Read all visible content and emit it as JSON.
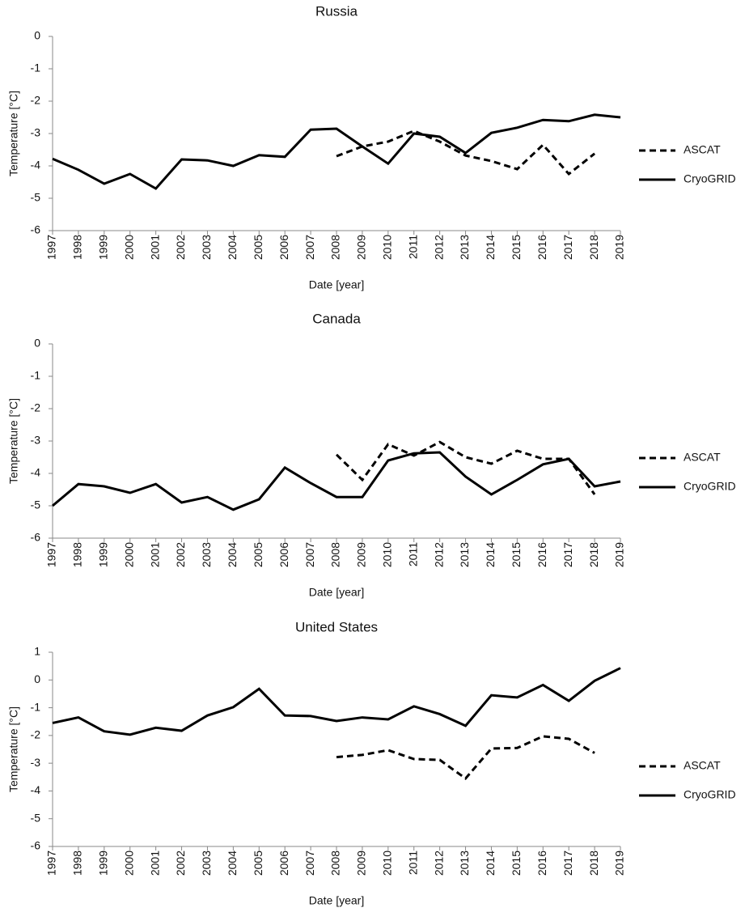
{
  "chart_data": [
    {
      "type": "line",
      "title": "Russia",
      "x_label": "Date [year]",
      "y_label": "Temperature [°C]",
      "x": [
        1997,
        1998,
        1999,
        2000,
        2001,
        2002,
        2003,
        2004,
        2005,
        2006,
        2007,
        2008,
        2009,
        2010,
        2011,
        2012,
        2013,
        2014,
        2015,
        2016,
        2017,
        2018,
        2019
      ],
      "xlim": [
        1997,
        2019
      ],
      "xticks": [
        1997,
        1998,
        1999,
        2000,
        2001,
        2002,
        2003,
        2004,
        2005,
        2006,
        2007,
        2008,
        2009,
        2010,
        2011,
        2012,
        2013,
        2014,
        2015,
        2016,
        2017,
        2018,
        2019
      ],
      "ylim": [
        -6,
        0
      ],
      "yticks": [
        -6,
        -5,
        -4,
        -3,
        -2,
        -1,
        0
      ],
      "legend": "right",
      "series": [
        {
          "name": "ASCAT",
          "color": "#000000",
          "line_style": "dashed",
          "values": [
            null,
            null,
            null,
            null,
            null,
            null,
            null,
            null,
            null,
            null,
            null,
            -3.7,
            -3.4,
            -3.25,
            -2.92,
            -3.25,
            -3.68,
            -3.85,
            -4.1,
            -3.35,
            -4.25,
            -3.62,
            null
          ]
        },
        {
          "name": "CryoGRID",
          "color": "#000000",
          "line_style": "solid",
          "values": [
            -3.78,
            -4.12,
            -4.55,
            -4.25,
            -4.7,
            -3.8,
            -3.83,
            -4.0,
            -3.67,
            -3.72,
            -2.88,
            -2.85,
            -3.4,
            -3.93,
            -3.0,
            -3.1,
            -3.6,
            -2.98,
            -2.82,
            -2.58,
            -2.62,
            -2.42,
            -2.5
          ]
        }
      ]
    },
    {
      "type": "line",
      "title": "Canada",
      "x_label": "Date [year]",
      "y_label": "Temperature [°C]",
      "x": [
        1997,
        1998,
        1999,
        2000,
        2001,
        2002,
        2003,
        2004,
        2005,
        2006,
        2007,
        2008,
        2009,
        2010,
        2011,
        2012,
        2013,
        2014,
        2015,
        2016,
        2017,
        2018,
        2019
      ],
      "xlim": [
        1997,
        2019
      ],
      "xticks": [
        1997,
        1998,
        1999,
        2000,
        2001,
        2002,
        2003,
        2004,
        2005,
        2006,
        2007,
        2008,
        2009,
        2010,
        2011,
        2012,
        2013,
        2014,
        2015,
        2016,
        2017,
        2018,
        2019
      ],
      "ylim": [
        -6,
        0
      ],
      "yticks": [
        -6,
        -5,
        -4,
        -3,
        -2,
        -1,
        0
      ],
      "legend": "right",
      "series": [
        {
          "name": "ASCAT",
          "color": "#000000",
          "line_style": "dashed",
          "values": [
            null,
            null,
            null,
            null,
            null,
            null,
            null,
            null,
            null,
            null,
            null,
            -3.42,
            -4.2,
            -3.1,
            -3.45,
            -3.03,
            -3.5,
            -3.7,
            -3.3,
            -3.55,
            -3.55,
            -4.65,
            null
          ]
        },
        {
          "name": "CryoGRID",
          "color": "#000000",
          "line_style": "solid",
          "values": [
            -5.0,
            -4.33,
            -4.4,
            -4.6,
            -4.33,
            -4.9,
            -4.73,
            -5.12,
            -4.8,
            -3.82,
            -4.3,
            -4.73,
            -4.73,
            -3.6,
            -3.38,
            -3.35,
            -4.1,
            -4.65,
            -4.2,
            -3.72,
            -3.55,
            -4.4,
            -4.25
          ]
        }
      ]
    },
    {
      "type": "line",
      "title": "United States",
      "x_label": "Date [year]",
      "y_label": "Temperature [°C]",
      "x": [
        1997,
        1998,
        1999,
        2000,
        2001,
        2002,
        2003,
        2004,
        2005,
        2006,
        2007,
        2008,
        2009,
        2010,
        2011,
        2012,
        2013,
        2014,
        2015,
        2016,
        2017,
        2018,
        2019
      ],
      "xlim": [
        1997,
        2019
      ],
      "xticks": [
        1997,
        1998,
        1999,
        2000,
        2001,
        2002,
        2003,
        2004,
        2005,
        2006,
        2007,
        2008,
        2009,
        2010,
        2011,
        2012,
        2013,
        2014,
        2015,
        2016,
        2017,
        2018,
        2019
      ],
      "ylim": [
        -6,
        1
      ],
      "yticks": [
        -6,
        -5,
        -4,
        -3,
        -2,
        -1,
        0,
        1
      ],
      "legend": "right",
      "series": [
        {
          "name": "ASCAT",
          "color": "#000000",
          "line_style": "dashed",
          "values": [
            null,
            null,
            null,
            null,
            null,
            null,
            null,
            null,
            null,
            null,
            null,
            -2.78,
            -2.7,
            -2.53,
            -2.85,
            -2.88,
            -3.55,
            -2.47,
            -2.45,
            -2.03,
            -2.12,
            -2.63,
            null
          ]
        },
        {
          "name": "CryoGRID",
          "color": "#000000",
          "line_style": "solid",
          "values": [
            -1.55,
            -1.35,
            -1.85,
            -1.97,
            -1.72,
            -1.83,
            -1.28,
            -0.98,
            -0.32,
            -1.28,
            -1.3,
            -1.48,
            -1.35,
            -1.42,
            -0.95,
            -1.23,
            -1.65,
            -0.55,
            -0.63,
            -0.18,
            -0.75,
            -0.03,
            0.43
          ]
        }
      ]
    }
  ]
}
